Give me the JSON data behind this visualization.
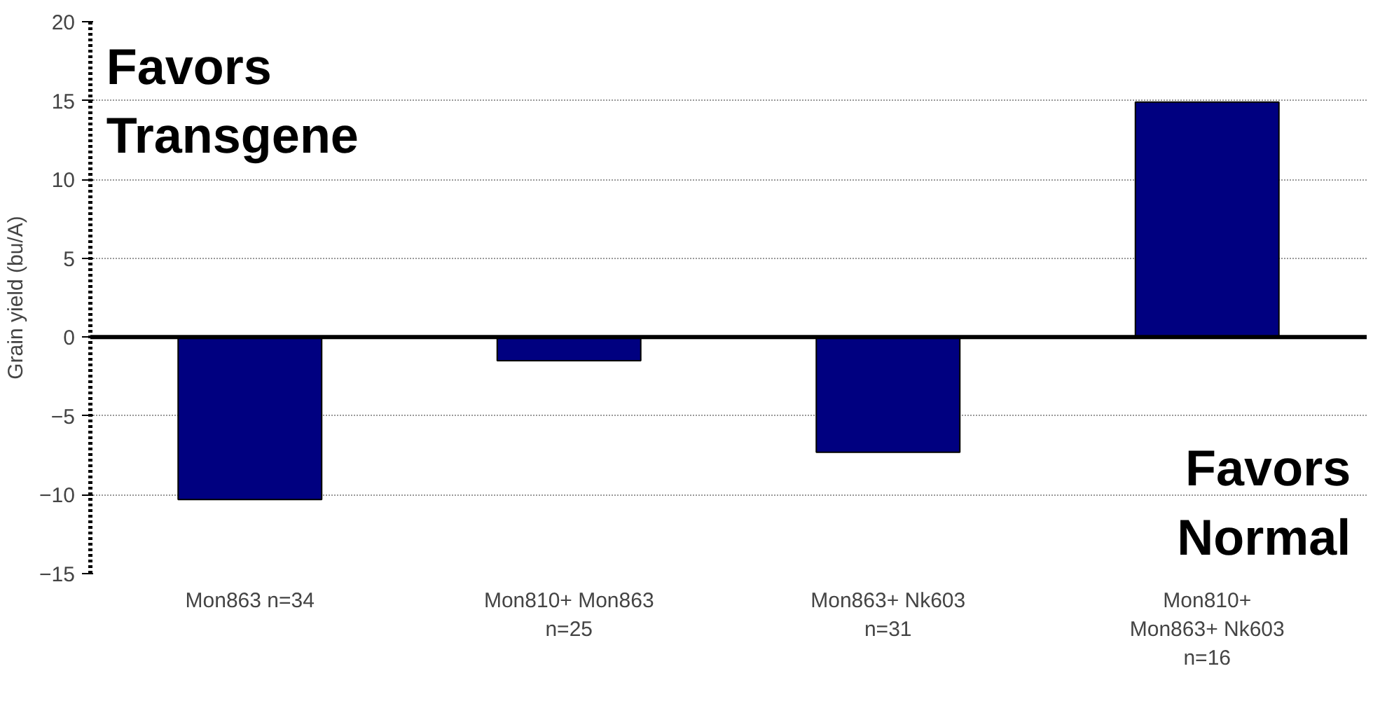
{
  "chart_data": {
    "type": "bar",
    "ylabel": "Grain yield (bu/A)",
    "categories": [
      "Mon863 n=34",
      "Mon810+ Mon863\nn=25",
      "Mon863+ Nk603\nn=31",
      "Mon810+\nMon863+ Nk603\nn=16"
    ],
    "values": [
      -10.3,
      -1.5,
      -7.3,
      14.9
    ],
    "color": "#000080",
    "ylim": [
      -15,
      20
    ],
    "yticks": [
      -15,
      -10,
      -5,
      0,
      5,
      10,
      15,
      20
    ],
    "grid": "y",
    "ref_lines": [
      {
        "axis": "y",
        "value": 0,
        "color": "#000000"
      }
    ],
    "annotations": [
      "Favors\nTransgene",
      "Favors\nNormal"
    ]
  }
}
